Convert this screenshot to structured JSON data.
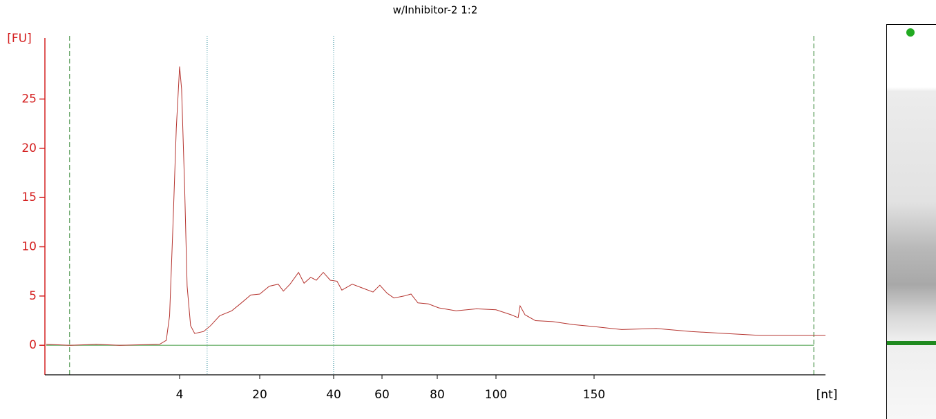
{
  "chart_data": {
    "type": "line",
    "title": "w/Inhibitor-2 1:2",
    "ylabel": "[FU]",
    "xlabel": "[nt]",
    "x": [
      0,
      0.7,
      1.5,
      2.2,
      3.4,
      3.6,
      3.7,
      3.8,
      3.9,
      4.0,
      4.4,
      5.0,
      5.5,
      6.2,
      7.0,
      8.8,
      10.2,
      12.0,
      14.4,
      16.1,
      18.2,
      20,
      22.6,
      25.0,
      26.4,
      28.2,
      30.5,
      32,
      33.8,
      35.3,
      37.2,
      39.1,
      41.4,
      43.4,
      47.7,
      52.0,
      56.3,
      59.1,
      61.8,
      64.3,
      68,
      70.5,
      73,
      76.8,
      80.5,
      86.4,
      93.4,
      100,
      107.7,
      111.3,
      112.3,
      114.8,
      120.1,
      128.9,
      139.4,
      150,
      164.2,
      182.0,
      199.7,
      217.5,
      235.3,
      253,
      269
    ],
    "values": [
      0.1,
      0.0,
      0.1,
      0.0,
      0.1,
      0.5,
      3,
      12,
      22,
      28.3,
      26,
      16,
      6,
      2,
      1.2,
      1.4,
      2,
      3,
      3.5,
      4.2,
      5.1,
      5.2,
      6.0,
      6.2,
      5.5,
      6.2,
      7.4,
      6.3,
      6.9,
      6.6,
      7.4,
      6.6,
      6.5,
      5.6,
      6.2,
      5.8,
      5.4,
      6.1,
      5.3,
      4.8,
      5.0,
      5.2,
      4.3,
      4.2,
      3.8,
      3.5,
      3.7,
      3.6,
      3.1,
      2.8,
      4.0,
      3.1,
      2.5,
      2.4,
      2.1,
      1.9,
      1.6,
      1.7,
      1.4,
      1.2,
      1.0,
      1.0,
      1.0
    ],
    "color": "#b5332e",
    "axis_color": "#d42020",
    "baseline_color": "#5aa85a",
    "xlim": [
      0,
      269
    ],
    "xticks": [
      4,
      20,
      40,
      60,
      80,
      100,
      150
    ],
    "ylim": [
      -3,
      31.2
    ],
    "yticks": [
      0,
      5,
      10,
      15,
      20,
      25
    ],
    "markers": [
      {
        "x": 0.7,
        "color": "#3a8a3a",
        "style": "dashed"
      },
      {
        "x": 9.5,
        "color": "#2a8a9a",
        "style": "dotted"
      },
      {
        "x": 40,
        "color": "#2a8a9a",
        "style": "dotted"
      },
      {
        "x": 263,
        "color": "#3a8a3a",
        "style": "dashed"
      }
    ]
  }
}
